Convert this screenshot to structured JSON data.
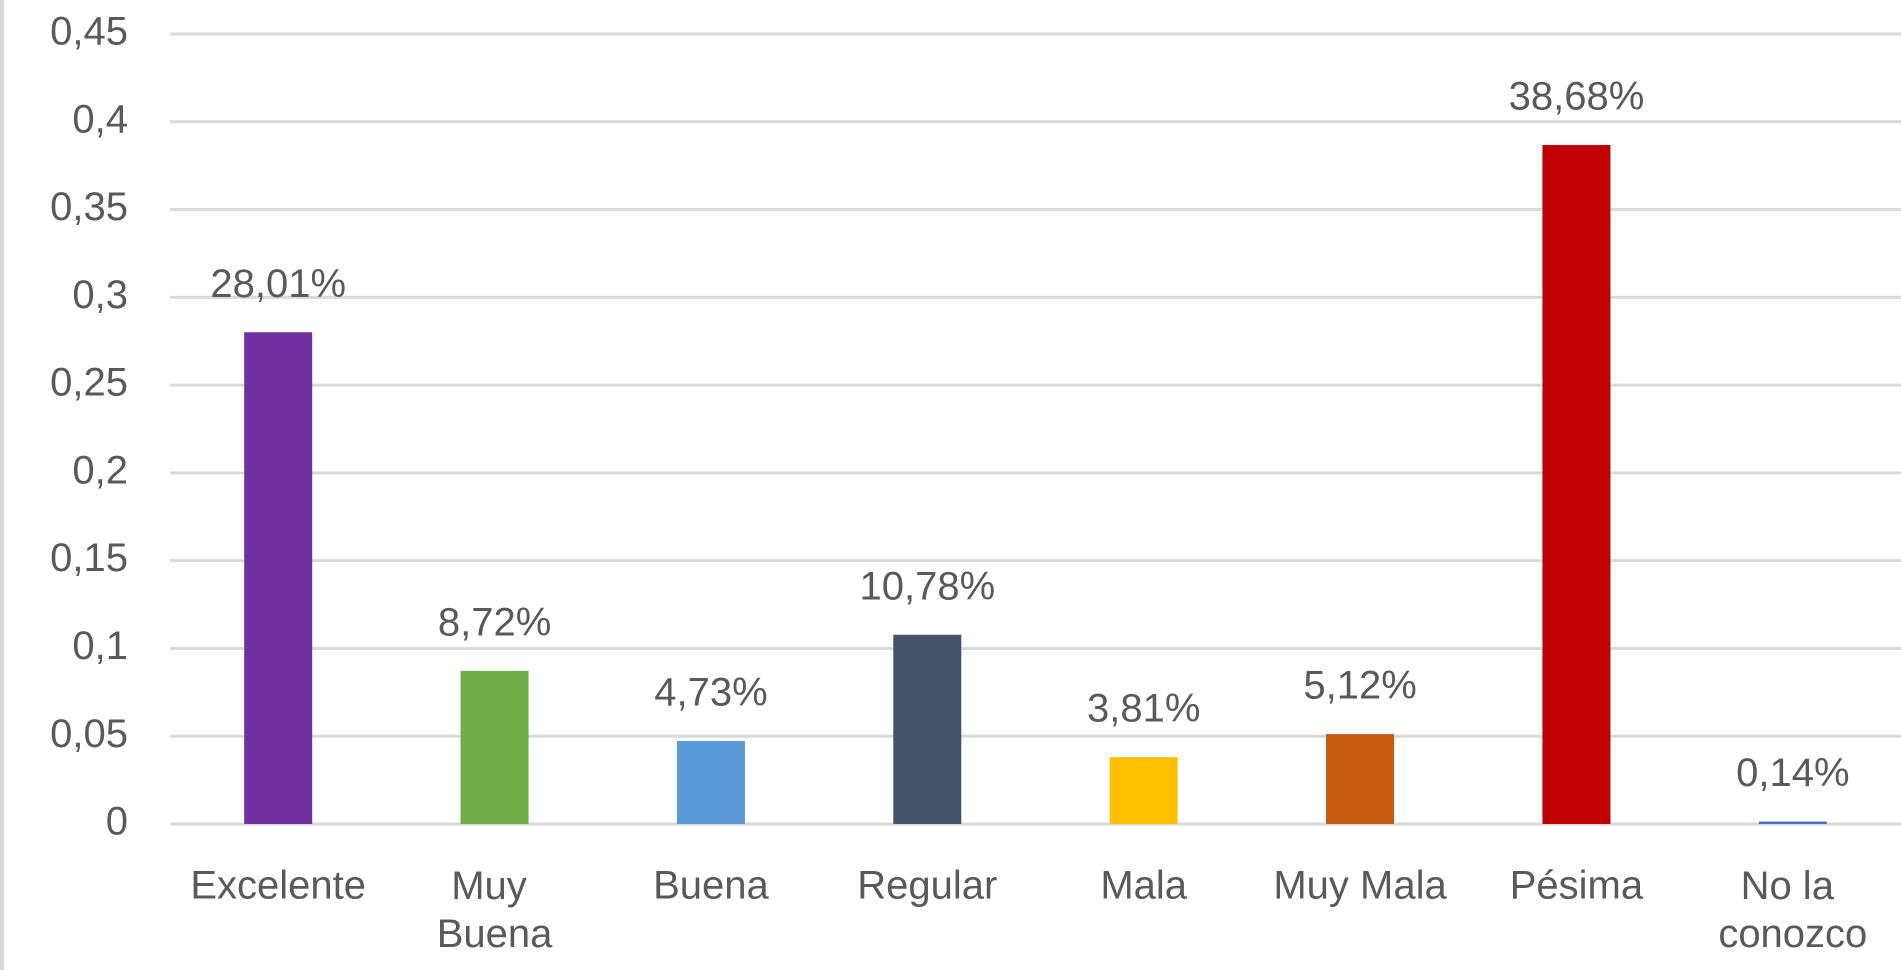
{
  "chart_data": {
    "type": "bar",
    "categories": [
      "Excelente",
      "Muy Buena",
      "Buena",
      "Regular",
      "Mala",
      "Muy Mala",
      "Pésima",
      "No la conozco"
    ],
    "values": [
      0.2801,
      0.0872,
      0.0473,
      0.1078,
      0.0381,
      0.0512,
      0.3868,
      0.0014
    ],
    "value_labels": [
      "28,01%",
      "8,72%",
      "4,73%",
      "10,78%",
      "3,81%",
      "5,12%",
      "38,68%",
      "0,14%"
    ],
    "colors": [
      "#7030a0",
      "#70ad47",
      "#5b9bd5",
      "#44546a",
      "#ffc000",
      "#c55a11",
      "#c00000",
      "#4472c4"
    ],
    "ylim": [
      0,
      0.45
    ],
    "yticks": [
      0,
      {
        "value": 0.05,
        "label": "0,05"
      },
      {
        "value": 0.1,
        "label": "0,1"
      },
      {
        "value": 0.15,
        "label": "0,15"
      },
      {
        "value": 0.2,
        "label": "0,2"
      },
      {
        "value": 0.25,
        "label": "0,25"
      },
      {
        "value": 0.3,
        "label": "0,3"
      },
      {
        "value": 0.35,
        "label": "0,35"
      },
      {
        "value": 0.4,
        "label": "0,4"
      },
      {
        "value": 0.45,
        "label": "0,45"
      }
    ],
    "grid": true
  }
}
